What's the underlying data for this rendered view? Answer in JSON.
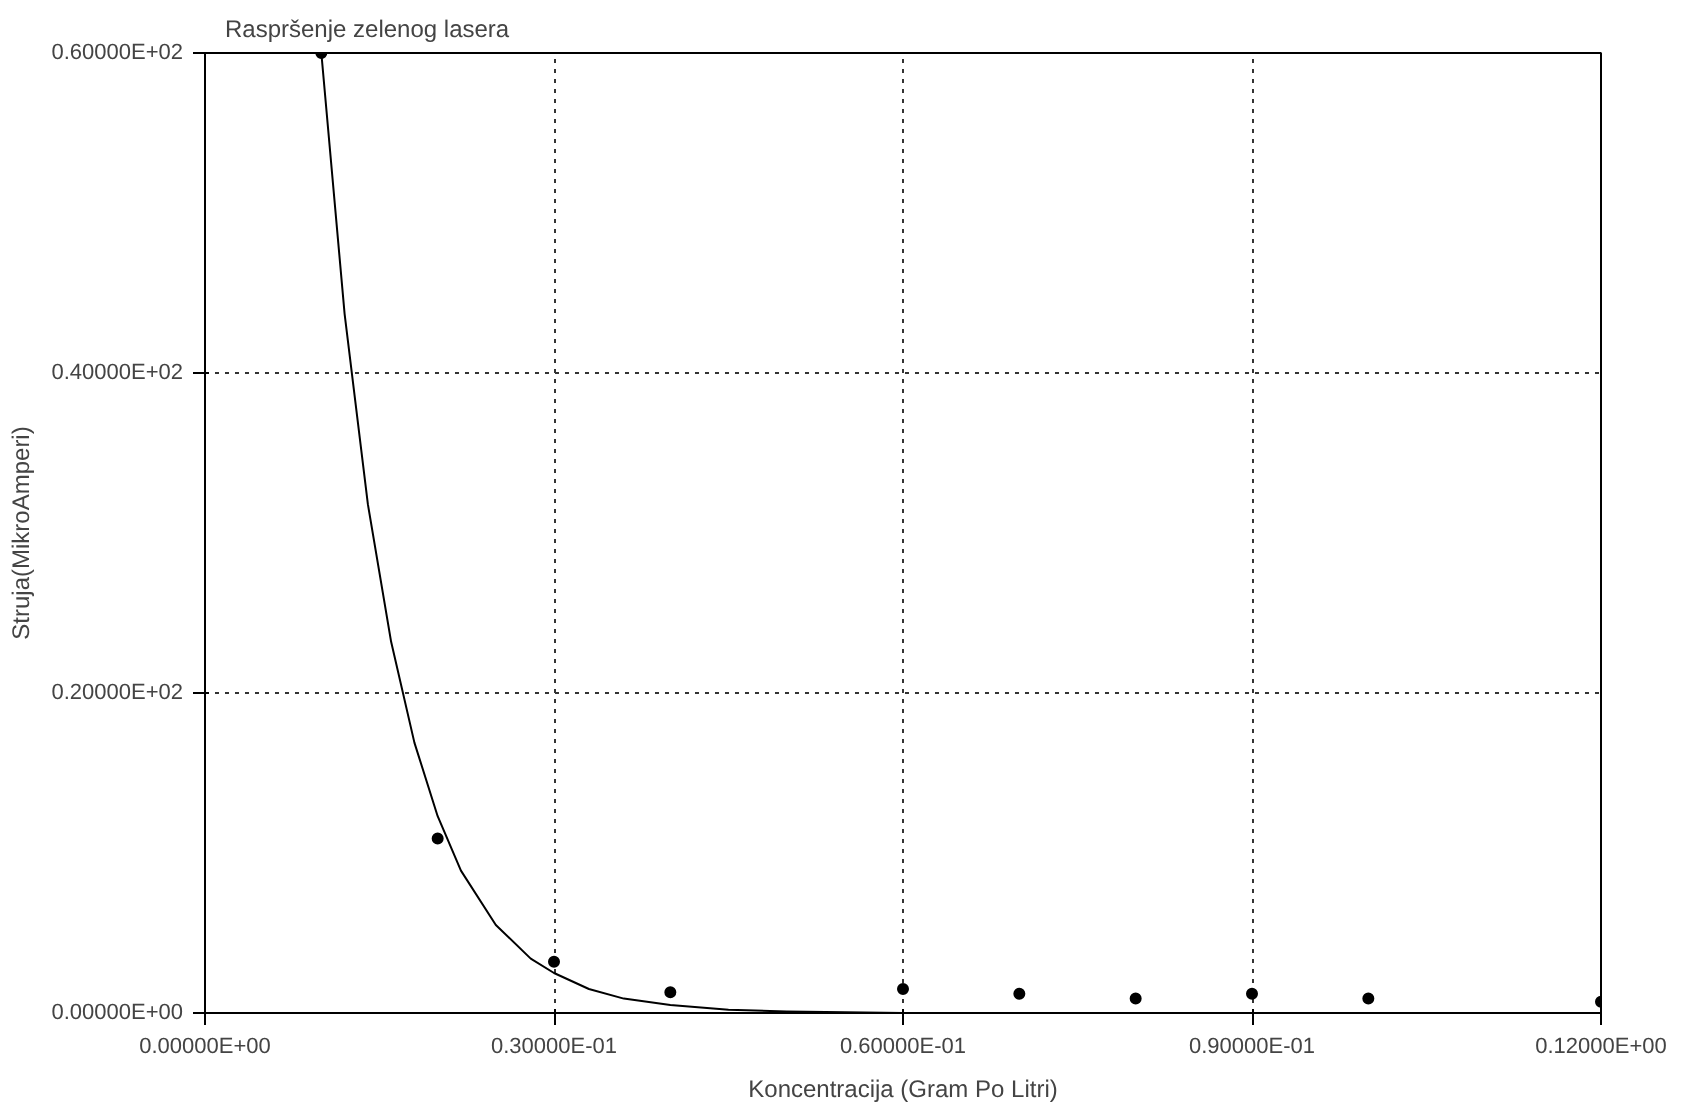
{
  "chart_data": {
    "type": "scatter",
    "title": "Raspršenje zelenog lasera",
    "xlabel": "Koncentracija (Gram Po Litri)",
    "ylabel": "Struja(MikroAmperi)",
    "xlim": [
      0,
      0.12
    ],
    "ylim": [
      0,
      60
    ],
    "xticks": [
      {
        "value": 0,
        "label": "0.00000E+00"
      },
      {
        "value": 0.03,
        "label": "0.30000E-01"
      },
      {
        "value": 0.06,
        "label": "0.60000E-01"
      },
      {
        "value": 0.09,
        "label": "0.90000E-01"
      },
      {
        "value": 0.12,
        "label": "0.12000E+00"
      }
    ],
    "yticks": [
      {
        "value": 0,
        "label": "0.00000E+00"
      },
      {
        "value": 20,
        "label": "0.20000E+02"
      },
      {
        "value": 40,
        "label": "0.40000E+02"
      },
      {
        "value": 60,
        "label": "0.60000E+02"
      }
    ],
    "grid": true,
    "series": [
      {
        "color": "#000000",
        "marker": "circle",
        "x": [
          0.01,
          0.02,
          0.03,
          0.04,
          0.06,
          0.07,
          0.08,
          0.09,
          0.1,
          0.12
        ],
        "values": [
          60,
          10.9,
          3.2,
          1.3,
          1.5,
          1.2,
          0.9,
          1.2,
          0.9,
          0.7
        ]
      },
      {
        "type": "line",
        "color": "#000000",
        "marker": "none",
        "line_style": "solid",
        "x": [
          0.01,
          0.012,
          0.014,
          0.016,
          0.018,
          0.02,
          0.022,
          0.025,
          0.028,
          0.03,
          0.033,
          0.036,
          0.04,
          0.045,
          0.05,
          0.06,
          0.09,
          0.12
        ],
        "values": [
          60,
          43.7,
          31.8,
          23.2,
          16.9,
          12.3,
          8.9,
          5.5,
          3.4,
          2.5,
          1.5,
          0.9,
          0.5,
          0.2,
          0.1,
          0,
          0,
          0
        ]
      }
    ]
  }
}
